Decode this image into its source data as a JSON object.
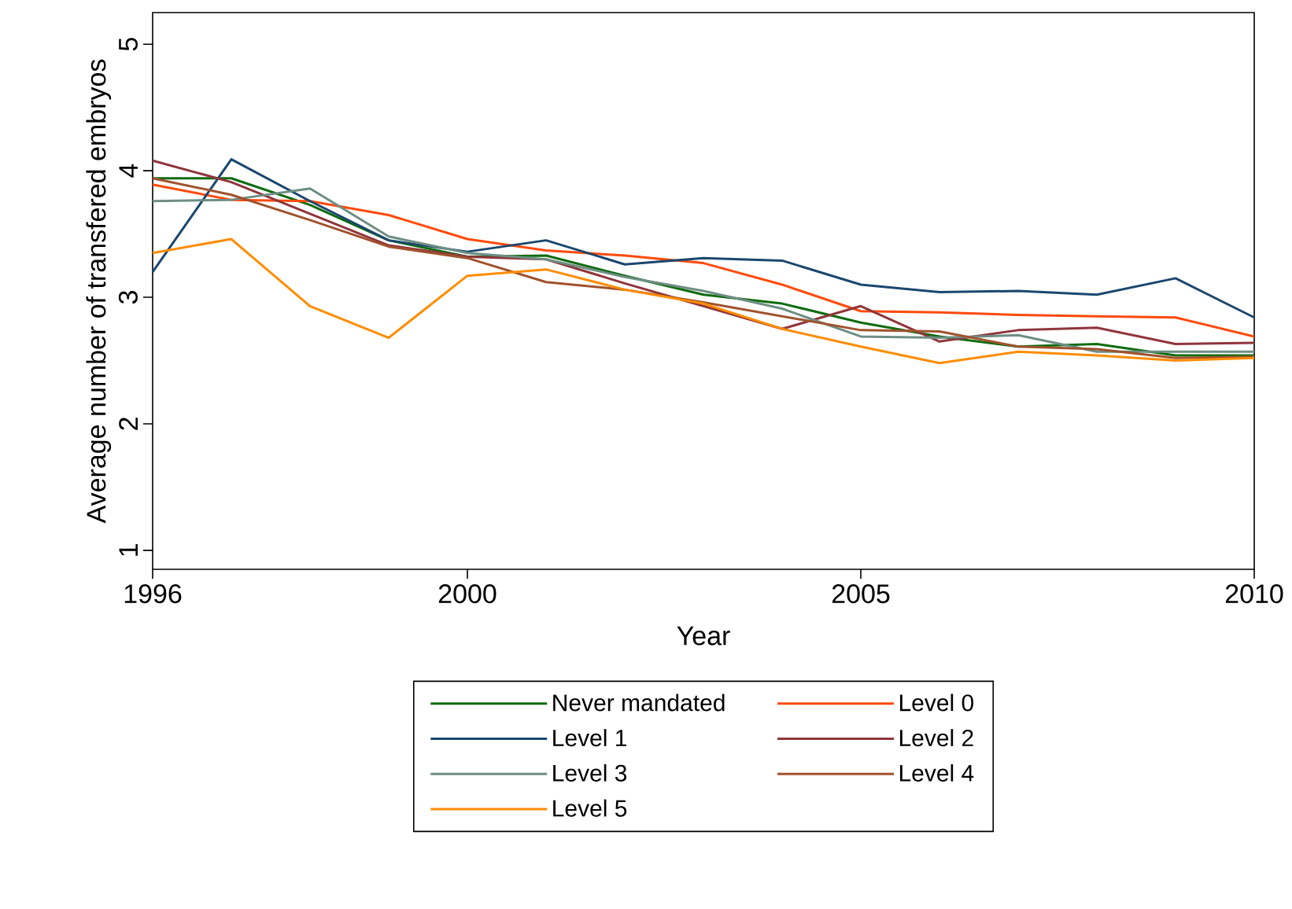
{
  "chart_data": {
    "type": "line",
    "xlabel": "Year",
    "ylabel": "Average number of transfered embryos",
    "x": [
      1996,
      1997,
      1998,
      1999,
      2000,
      2001,
      2002,
      2003,
      2004,
      2005,
      2006,
      2007,
      2008,
      2009,
      2010
    ],
    "xlim": [
      1996,
      2010
    ],
    "xticks": [
      1996,
      2000,
      2005,
      2010
    ],
    "ylim": [
      0.85,
      5.25
    ],
    "yticks": [
      1,
      2,
      3,
      4,
      5
    ],
    "grid": false,
    "legend": "bottom",
    "marker": "none",
    "line_style": "solid",
    "series": [
      {
        "name": "Never mandated",
        "color": "#0f6b0f",
        "values": [
          3.94,
          3.94,
          3.73,
          3.45,
          3.32,
          3.33,
          3.17,
          3.02,
          2.95,
          2.8,
          2.69,
          2.61,
          2.63,
          2.54,
          2.54
        ]
      },
      {
        "name": "Level 0",
        "color": "#ff4a0a",
        "values": [
          3.89,
          3.77,
          3.76,
          3.65,
          3.46,
          3.37,
          3.33,
          3.27,
          3.1,
          2.89,
          2.88,
          2.86,
          2.85,
          2.84,
          2.69
        ]
      },
      {
        "name": "Level 1",
        "color": "#1a476f",
        "values": [
          3.2,
          4.09,
          3.76,
          3.45,
          3.36,
          3.45,
          3.26,
          3.31,
          3.29,
          3.1,
          3.04,
          3.05,
          3.02,
          3.15,
          2.84
        ]
      },
      {
        "name": "Level 2",
        "color": "#90353b",
        "values": [
          4.08,
          3.91,
          3.66,
          3.41,
          3.32,
          3.3,
          3.11,
          2.93,
          2.75,
          2.93,
          2.65,
          2.74,
          2.76,
          2.63,
          2.64
        ]
      },
      {
        "name": "Level 3",
        "color": "#6e8e84",
        "values": [
          3.76,
          3.77,
          3.86,
          3.48,
          3.35,
          3.3,
          3.16,
          3.05,
          2.91,
          2.69,
          2.68,
          2.7,
          2.57,
          2.57,
          2.57
        ]
      },
      {
        "name": "Level 4",
        "color": "#a0522d",
        "values": [
          3.94,
          3.81,
          3.61,
          3.4,
          3.31,
          3.12,
          3.06,
          2.96,
          2.85,
          2.74,
          2.73,
          2.61,
          2.59,
          2.52,
          2.53
        ]
      },
      {
        "name": "Level 5",
        "color": "#ff8c00",
        "values": [
          3.35,
          3.46,
          2.93,
          2.68,
          3.17,
          3.22,
          3.06,
          2.95,
          2.75,
          2.61,
          2.48,
          2.57,
          2.54,
          2.5,
          2.52
        ]
      }
    ]
  }
}
